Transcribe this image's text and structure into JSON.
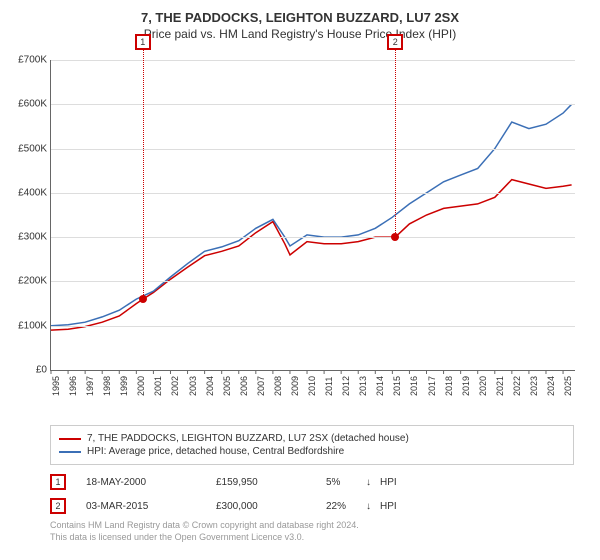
{
  "chart": {
    "type": "line",
    "title": "7, THE PADDOCKS, LEIGHTON BUZZARD, LU7 2SX",
    "subtitle": "Price paid vs. HM Land Registry's House Price Index (HPI)",
    "background_color": "#ffffff",
    "grid_color": "#dddddd",
    "axis_color": "#666666",
    "text_color": "#333333",
    "title_fontsize": 13,
    "subtitle_fontsize": 12,
    "tick_fontsize": 10,
    "x": {
      "min": 1995,
      "max": 2025.7,
      "ticks": [
        1995,
        1996,
        1997,
        1998,
        1999,
        2000,
        2001,
        2002,
        2003,
        2004,
        2005,
        2006,
        2007,
        2008,
        2009,
        2010,
        2011,
        2012,
        2013,
        2014,
        2015,
        2016,
        2017,
        2018,
        2019,
        2020,
        2021,
        2022,
        2023,
        2024,
        2025
      ]
    },
    "y": {
      "min": 0,
      "max": 700000,
      "tick_step": 100000,
      "tick_prefix": "£",
      "tick_suffix": "K",
      "tick_divisor": 1000,
      "labels": [
        "£0",
        "£100K",
        "£200K",
        "£300K",
        "£400K",
        "£500K",
        "£600K",
        "£700K"
      ]
    },
    "series": [
      {
        "id": "price_paid",
        "label": "7, THE PADDOCKS, LEIGHTON BUZZARD, LU7 2SX (detached house)",
        "color": "#cc0000",
        "line_width": 1.5,
        "years": [
          1995,
          1996,
          1997,
          1998,
          1999,
          2000,
          2000.38,
          2001,
          2002,
          2003,
          2004,
          2005,
          2006,
          2007,
          2008,
          2008.7,
          2009,
          2010,
          2011,
          2012,
          2013,
          2014,
          2015,
          2015.17,
          2016,
          2017,
          2018,
          2019,
          2020,
          2021,
          2022,
          2023,
          2024,
          2025,
          2025.5
        ],
        "values": [
          90000,
          92000,
          98000,
          108000,
          122000,
          150000,
          159950,
          175000,
          205000,
          232000,
          258000,
          268000,
          280000,
          310000,
          335000,
          285000,
          260000,
          290000,
          285000,
          285000,
          290000,
          300000,
          300000,
          300000,
          330000,
          350000,
          365000,
          370000,
          375000,
          390000,
          430000,
          420000,
          410000,
          415000,
          418000
        ]
      },
      {
        "id": "hpi",
        "label": "HPI: Average price, detached house, Central Bedfordshire",
        "color": "#3b6fb6",
        "line_width": 1.5,
        "years": [
          1995,
          1996,
          1997,
          1998,
          1999,
          2000,
          2001,
          2002,
          2003,
          2004,
          2005,
          2006,
          2007,
          2008,
          2008.7,
          2009,
          2010,
          2011,
          2012,
          2013,
          2014,
          2015,
          2016,
          2017,
          2018,
          2019,
          2020,
          2021,
          2022,
          2023,
          2024,
          2025,
          2025.5
        ],
        "values": [
          100000,
          102000,
          108000,
          120000,
          135000,
          160000,
          178000,
          210000,
          240000,
          268000,
          278000,
          292000,
          320000,
          340000,
          300000,
          280000,
          305000,
          300000,
          300000,
          305000,
          320000,
          345000,
          375000,
          400000,
          425000,
          440000,
          455000,
          500000,
          560000,
          545000,
          555000,
          580000,
          600000
        ]
      }
    ],
    "sale_markers": [
      {
        "n": "1",
        "year": 2000.38,
        "value": 159950
      },
      {
        "n": "2",
        "year": 2015.17,
        "value": 300000
      }
    ],
    "legend_border_color": "#cccccc"
  },
  "sales": [
    {
      "n": "1",
      "date": "18-MAY-2000",
      "price": "£159,950",
      "pct": "5%",
      "arrow": "↓",
      "suffix": "HPI"
    },
    {
      "n": "2",
      "date": "03-MAR-2015",
      "price": "£300,000",
      "pct": "22%",
      "arrow": "↓",
      "suffix": "HPI"
    }
  ],
  "footer": {
    "line1": "Contains HM Land Registry data © Crown copyright and database right 2024.",
    "line2": "This data is licensed under the Open Government Licence v3.0."
  }
}
